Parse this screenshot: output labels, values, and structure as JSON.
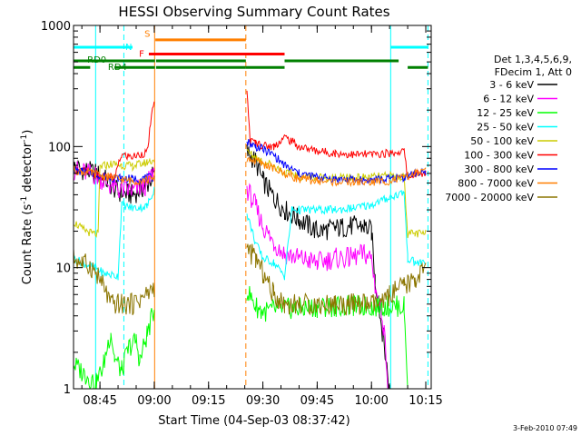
{
  "chart_data": {
    "type": "line",
    "title": "HESSI Observing Summary Count Rates",
    "xlabel": "Start Time (04-Sep-03 08:37:42)",
    "ylabel_main": "Count Rate (s",
    "ylabel_sup1": "-1",
    "ylabel_mid": " detector",
    "ylabel_sup2": "-1",
    "ylabel_end": ")",
    "yscale": "log",
    "ylim": [
      1,
      1000
    ],
    "xlim_minutes": [
      517.7,
      616.5
    ],
    "x_ticks": [
      {
        "label": "08:45",
        "min": 525
      },
      {
        "label": "09:00",
        "min": 540
      },
      {
        "label": "09:15",
        "min": 555
      },
      {
        "label": "09:30",
        "min": 570
      },
      {
        "label": "09:45",
        "min": 585
      },
      {
        "label": "10:00",
        "min": 600
      },
      {
        "label": "10:15",
        "min": 615
      }
    ],
    "y_ticks": [
      {
        "label": "1",
        "value": 1
      },
      {
        "label": "10",
        "value": 10
      },
      {
        "label": "100",
        "value": 100
      },
      {
        "label": "1000",
        "value": 1000
      }
    ],
    "legend_header": [
      "Det 1,3,4,5,6,9,",
      "FDecim 1, Att 0"
    ],
    "legend_position": "right",
    "footer_date": "3-Feb-2010 07:49",
    "flag_labels": {
      "S": "S",
      "F": "F",
      "N": "N",
      "RD0": "RD0",
      "RD4": "RD4"
    },
    "flags": [
      {
        "name": "S",
        "color": "#ff7f00",
        "segments": [
          [
            540.3,
            565.3
          ]
        ],
        "value": 760
      },
      {
        "name": "F",
        "color": "#ff0000",
        "segments": [
          [
            538.5,
            576.0
          ]
        ],
        "value": 580
      },
      {
        "name": "N",
        "color": "#00ffff",
        "segments": [
          [
            517.7,
            534.0
          ],
          [
            605.3,
            615.6
          ]
        ],
        "value": 660
      },
      {
        "name": "RD0",
        "color": "#008000",
        "segments": [
          [
            517.7,
            540.2
          ],
          [
            540.5,
            565.3
          ],
          [
            576.0,
            607.5
          ]
        ],
        "value": 510
      },
      {
        "name": "RD4",
        "color": "#008000",
        "segments": [
          [
            517.7,
            522.3
          ],
          [
            529.0,
            540.2
          ],
          [
            540.5,
            565.3
          ],
          [
            565.3,
            576.0
          ],
          [
            610.0,
            615.6
          ]
        ],
        "value": 450
      }
    ],
    "vlines": [
      {
        "min": 540.1,
        "color": "#ff7f00",
        "style": "solid"
      },
      {
        "min": 565.3,
        "color": "#ff7f00",
        "style": "dashed"
      },
      {
        "min": 523.8,
        "color": "#00ffff",
        "style": "solid"
      },
      {
        "min": 531.6,
        "color": "#00ffff",
        "style": "dashed"
      },
      {
        "min": 605.3,
        "color": "#00ffff",
        "style": "solid"
      },
      {
        "min": 615.6,
        "color": "#00ffff",
        "style": "dashed"
      }
    ],
    "series": [
      {
        "name": "3 - 6 keV",
        "color": "#000000",
        "points": [
          [
            517.7,
            68
          ],
          [
            523.8,
            60
          ],
          [
            526,
            55
          ],
          [
            530,
            42
          ],
          [
            534,
            40
          ],
          [
            538,
            48
          ],
          [
            540,
            60
          ],
          [
            565.6,
            90
          ],
          [
            568,
            75
          ],
          [
            570,
            52
          ],
          [
            573,
            38
          ],
          [
            576,
            30
          ],
          [
            580,
            25
          ],
          [
            585,
            20
          ],
          [
            590,
            21
          ],
          [
            594,
            22
          ],
          [
            598,
            22
          ],
          [
            600,
            20
          ],
          [
            601,
            8
          ],
          [
            603,
            3
          ],
          [
            605,
            1
          ]
        ]
      },
      {
        "name": "6 - 12 keV",
        "color": "#ff00ff",
        "points": [
          [
            517.7,
            64
          ],
          [
            523.8,
            58
          ],
          [
            526,
            52
          ],
          [
            530,
            44
          ],
          [
            534,
            43
          ],
          [
            538,
            48
          ],
          [
            540,
            65
          ],
          [
            565.6,
            45
          ],
          [
            568,
            32
          ],
          [
            570,
            22
          ],
          [
            573,
            16
          ],
          [
            576,
            13
          ],
          [
            580,
            12
          ],
          [
            585,
            11
          ],
          [
            590,
            12
          ],
          [
            594,
            12
          ],
          [
            598,
            13
          ],
          [
            600,
            12
          ],
          [
            601,
            7
          ],
          [
            603,
            4
          ],
          [
            604,
            2
          ],
          [
            604.5,
            1
          ]
        ]
      },
      {
        "name": "12 - 25 keV",
        "color": "#00ff00",
        "points": [
          [
            517.7,
            1.6
          ],
          [
            521,
            1.3
          ],
          [
            524,
            1.1
          ],
          [
            526,
            1.6
          ],
          [
            528,
            3
          ],
          [
            529,
            1.8
          ],
          [
            531,
            1.4
          ],
          [
            533,
            2.2
          ],
          [
            535,
            2.5
          ],
          [
            536,
            1.7
          ],
          [
            538,
            2.8
          ],
          [
            540,
            4.5
          ],
          [
            565.6,
            6.5
          ],
          [
            568,
            4.8
          ],
          [
            570,
            4.3
          ],
          [
            573,
            4.5
          ],
          [
            576,
            4.6
          ],
          [
            580,
            4.6
          ],
          [
            585,
            4.7
          ],
          [
            590,
            4.8
          ],
          [
            595,
            4.8
          ],
          [
            600,
            4.8
          ],
          [
            605,
            4.8
          ],
          [
            609,
            4.8
          ],
          [
            610,
            1
          ]
        ]
      },
      {
        "name": "25 - 50 keV",
        "color": "#00ffff",
        "points": [
          [
            517.7,
            12
          ],
          [
            520,
            11
          ],
          [
            523.8,
            10
          ],
          [
            526,
            9
          ],
          [
            530,
            8.5
          ],
          [
            531,
            33
          ],
          [
            534,
            31
          ],
          [
            538,
            32
          ],
          [
            540,
            45
          ],
          [
            565.6,
            28
          ],
          [
            568,
            16
          ],
          [
            570,
            12
          ],
          [
            573,
            11
          ],
          [
            576,
            8.5
          ],
          [
            578,
            30
          ],
          [
            580,
            30
          ],
          [
            585,
            30
          ],
          [
            590,
            30
          ],
          [
            595,
            31
          ],
          [
            600,
            33
          ],
          [
            605,
            38
          ],
          [
            609,
            42
          ],
          [
            610,
            12
          ],
          [
            612,
            11
          ],
          [
            615,
            11
          ]
        ]
      },
      {
        "name": "50 - 100 keV",
        "color": "#cccc00",
        "points": [
          [
            517.7,
            24
          ],
          [
            520,
            21
          ],
          [
            523,
            19
          ],
          [
            524.5,
            19
          ],
          [
            525,
            68
          ],
          [
            528,
            72
          ],
          [
            531,
            70
          ],
          [
            534,
            69
          ],
          [
            538,
            74
          ],
          [
            540,
            78
          ],
          [
            565.6,
            90
          ],
          [
            568,
            82
          ],
          [
            570,
            75
          ],
          [
            573,
            70
          ],
          [
            576,
            60
          ],
          [
            578,
            60
          ],
          [
            580,
            57
          ],
          [
            585,
            56
          ],
          [
            590,
            55
          ],
          [
            595,
            55
          ],
          [
            600,
            56
          ],
          [
            605,
            57
          ],
          [
            609,
            56
          ],
          [
            610,
            19
          ],
          [
            612,
            19
          ],
          [
            615,
            19
          ]
        ]
      },
      {
        "name": "100 - 300 keV",
        "color": "#ff0000",
        "points": [
          [
            517.7,
            65
          ],
          [
            520,
            63
          ],
          [
            523,
            60
          ],
          [
            526,
            56
          ],
          [
            529,
            55
          ],
          [
            531,
            85
          ],
          [
            534,
            82
          ],
          [
            538,
            90
          ],
          [
            540,
            250
          ],
          [
            565.6,
            280
          ],
          [
            566.5,
            110
          ],
          [
            568,
            108
          ],
          [
            570,
            102
          ],
          [
            573,
            100
          ],
          [
            576,
            120
          ],
          [
            578,
            110
          ],
          [
            580,
            100
          ],
          [
            585,
            92
          ],
          [
            590,
            88
          ],
          [
            595,
            86
          ],
          [
            600,
            86
          ],
          [
            605,
            88
          ],
          [
            609,
            92
          ],
          [
            610,
            55
          ],
          [
            612,
            60
          ],
          [
            615,
            60
          ]
        ]
      },
      {
        "name": "300 - 800 keV",
        "color": "#0000ff",
        "points": [
          [
            517.7,
            64
          ],
          [
            520,
            62
          ],
          [
            523,
            60
          ],
          [
            526,
            57
          ],
          [
            529,
            55
          ],
          [
            531,
            55
          ],
          [
            534,
            54
          ],
          [
            538,
            55
          ],
          [
            540,
            56
          ],
          [
            565.6,
            110
          ],
          [
            568,
            100
          ],
          [
            570,
            95
          ],
          [
            573,
            85
          ],
          [
            576,
            70
          ],
          [
            578,
            65
          ],
          [
            580,
            60
          ],
          [
            585,
            56
          ],
          [
            590,
            54
          ],
          [
            595,
            53
          ],
          [
            600,
            53
          ],
          [
            605,
            54
          ],
          [
            609,
            56
          ],
          [
            610,
            58
          ],
          [
            612,
            60
          ],
          [
            615,
            60
          ]
        ]
      },
      {
        "name": "800 - 7000 keV",
        "color": "#ff7f00",
        "points": [
          [
            517.7,
            64
          ],
          [
            520,
            62
          ],
          [
            523,
            60
          ],
          [
            526,
            57
          ],
          [
            529,
            55
          ],
          [
            531,
            53
          ],
          [
            534,
            52
          ],
          [
            538,
            53
          ],
          [
            540,
            54
          ],
          [
            565.6,
            80
          ],
          [
            568,
            76
          ],
          [
            570,
            72
          ],
          [
            573,
            66
          ],
          [
            576,
            60
          ],
          [
            578,
            57
          ],
          [
            580,
            54
          ],
          [
            585,
            52
          ],
          [
            590,
            51
          ],
          [
            595,
            51
          ],
          [
            600,
            51
          ],
          [
            605,
            52
          ],
          [
            609,
            55
          ],
          [
            610,
            57
          ],
          [
            612,
            60
          ],
          [
            615,
            62
          ]
        ]
      },
      {
        "name": "7000 - 20000 keV",
        "color": "#8b7500",
        "points": [
          [
            517.7,
            12
          ],
          [
            520,
            11
          ],
          [
            523,
            10
          ],
          [
            526,
            7
          ],
          [
            528,
            5
          ],
          [
            531,
            5
          ],
          [
            534,
            5
          ],
          [
            538,
            6
          ],
          [
            540,
            7
          ],
          [
            565.6,
            14
          ],
          [
            568,
            12
          ],
          [
            570,
            9
          ],
          [
            573,
            6
          ],
          [
            576,
            5
          ],
          [
            580,
            5
          ],
          [
            585,
            5
          ],
          [
            590,
            5
          ],
          [
            595,
            5
          ],
          [
            600,
            5
          ],
          [
            603,
            5
          ],
          [
            605,
            6
          ],
          [
            609,
            7
          ],
          [
            612,
            8
          ],
          [
            615,
            10
          ]
        ]
      }
    ]
  }
}
